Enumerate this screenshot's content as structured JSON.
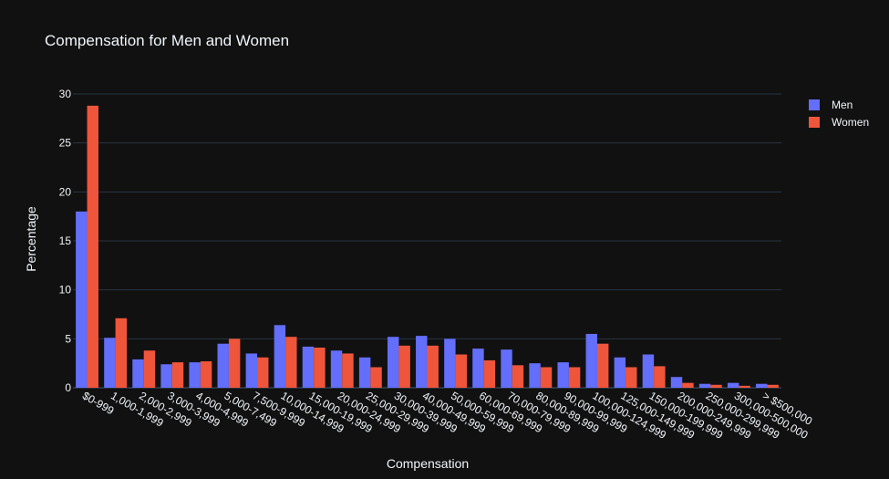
{
  "chart_data": {
    "type": "bar",
    "title": "Compensation for Men and Women",
    "xlabel": "Compensation",
    "ylabel": "Percentage",
    "ylim": [
      0,
      30
    ],
    "yticks": [
      0,
      5,
      10,
      15,
      20,
      25,
      30
    ],
    "grid": true,
    "legend_position": "top-right",
    "categories": [
      "$0-999",
      "1,000-1,999",
      "2,000-2,999",
      "3,000-3,999",
      "4,000-4,999",
      "5,000-7,499",
      "7,500-9,999",
      "10,000-14,999",
      "15,000-19,999",
      "20,000-24,999",
      "25,000-29,999",
      "30,000-39,999",
      "40,000-49,999",
      "50,000-59,999",
      "60,000-69,999",
      "70,000-79,999",
      "80,000-89,999",
      "90,000-99,999",
      "100,000-124,999",
      "125,000-149,999",
      "150,000-199,999",
      "200,000-249,999",
      "250,000-299,999",
      "300,000-500,000",
      "> $500,000"
    ],
    "series": [
      {
        "name": "Men",
        "color": "#636efa",
        "values": [
          18.0,
          5.1,
          2.9,
          2.4,
          2.6,
          4.5,
          3.5,
          6.4,
          4.2,
          3.8,
          3.1,
          5.2,
          5.3,
          5.0,
          4.0,
          3.9,
          2.5,
          2.6,
          5.5,
          3.1,
          3.4,
          1.1,
          0.4,
          0.5,
          0.4
        ]
      },
      {
        "name": "Women",
        "color": "#ef553b",
        "values": [
          28.8,
          7.1,
          3.8,
          2.6,
          2.7,
          5.0,
          3.1,
          5.2,
          4.1,
          3.5,
          2.1,
          4.3,
          4.3,
          3.4,
          2.8,
          2.3,
          2.1,
          2.1,
          4.5,
          2.1,
          2.2,
          0.5,
          0.3,
          0.2,
          0.3
        ]
      }
    ]
  }
}
